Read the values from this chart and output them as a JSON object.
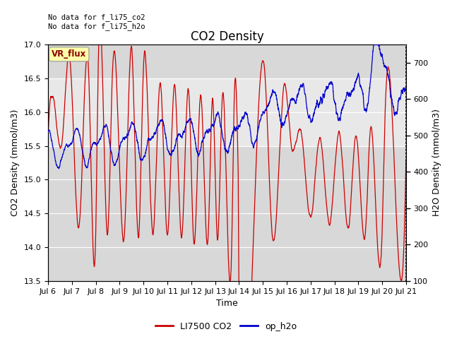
{
  "title": "CO2 Density",
  "xlabel": "Time",
  "ylabel_left": "CO2 Density (mmol/m3)",
  "ylabel_right": "H2O Density (mmol/m3)",
  "ylim_left": [
    13.5,
    17.0
  ],
  "ylim_right": [
    100,
    750
  ],
  "annotation_top": "No data for f_li75_co2\nNo data for f_li75_h2o",
  "vr_flux_label": "VR_flux",
  "legend_entries": [
    "LI7500 CO2",
    "op_h2o"
  ],
  "legend_colors": [
    "#cc0000",
    "#0000cc"
  ],
  "bg_color": "#ffffff",
  "plot_bg_color": "#d8d8d8",
  "inner_band_color": "#e8e8e8",
  "title_fontsize": 12,
  "label_fontsize": 9,
  "tick_fontsize": 8,
  "x_start": 6.0,
  "x_end": 21.0,
  "x_ticks": [
    6,
    7,
    8,
    9,
    10,
    11,
    12,
    13,
    14,
    15,
    16,
    17,
    18,
    19,
    20,
    21
  ],
  "x_tick_labels": [
    "Jul 6",
    "Jul 7",
    "Jul 8",
    "Jul 9",
    "Jul 10",
    "Jul 11",
    "Jul 12",
    "Jul 13",
    "Jul 14",
    "Jul 15",
    "Jul 16",
    "Jul 17",
    "Jul 18",
    "Jul 19",
    "Jul 20",
    "Jul 21"
  ],
  "co2_peaks_x": [
    6.3,
    6.9,
    7.7,
    8.1,
    8.7,
    9.5,
    10.0,
    10.7,
    11.3,
    11.9,
    12.4,
    12.9,
    13.3,
    13.8,
    15.1,
    15.9,
    16.6,
    17.4,
    18.2,
    18.9,
    19.5,
    20.1,
    20.5
  ],
  "co2_peaks_y": [
    16.0,
    16.85,
    16.6,
    16.65,
    16.6,
    16.95,
    16.7,
    16.45,
    16.4,
    16.3,
    16.25,
    16.2,
    16.2,
    16.2,
    16.5,
    16.4,
    15.7,
    15.6,
    15.7,
    15.65,
    15.7,
    15.7,
    15.3
  ],
  "co2_troughs_x": [
    6.0,
    6.6,
    7.3,
    8.0,
    8.5,
    9.2,
    9.8,
    10.4,
    11.0,
    11.6,
    12.1,
    12.7,
    13.1,
    13.7,
    14.05,
    14.6,
    15.4,
    16.2,
    17.0,
    17.8,
    18.6,
    19.3,
    20.0,
    21.0
  ],
  "co2_troughs_y": [
    15.65,
    15.6,
    14.3,
    14.25,
    14.2,
    14.2,
    14.2,
    14.2,
    14.2,
    14.15,
    14.1,
    14.1,
    14.1,
    14.1,
    13.55,
    14.1,
    14.15,
    15.5,
    14.45,
    14.35,
    14.3,
    14.25,
    14.25,
    15.3
  ]
}
